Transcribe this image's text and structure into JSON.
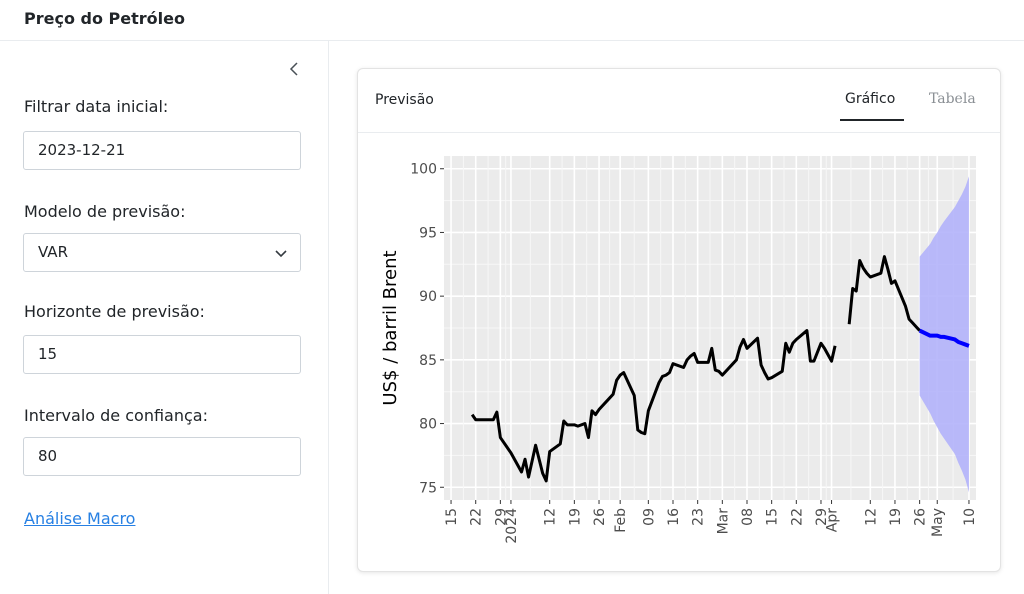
{
  "app": {
    "title": "Preço do Petróleo"
  },
  "sidebar": {
    "collapse_icon": "chevron-left-icon",
    "start_date": {
      "label": "Filtrar data inicial:",
      "value": "2023-12-21"
    },
    "model": {
      "label": "Modelo de previsão:",
      "value": "VAR"
    },
    "horizon": {
      "label": "Horizonte de previsão:",
      "value": "15"
    },
    "confidence": {
      "label": "Intervalo de confiança:",
      "value": "80"
    },
    "macro_link": "Análise Macro"
  },
  "card": {
    "title": "Previsão",
    "tabs": [
      {
        "label": "Gráfico",
        "active": true
      },
      {
        "label": "Tabela",
        "active": false
      }
    ]
  },
  "colors": {
    "history": "#000000",
    "forecast": "#0000ff",
    "band": "#b3b3fb",
    "panel": "#ebebeb",
    "link": "#2780e3"
  },
  "chart_data": {
    "type": "line",
    "ylabel": "US$ / barril Brent",
    "xlabel": "",
    "ylim": [
      74,
      101
    ],
    "xlim": [
      "2023-12-13",
      "2024-05-12"
    ],
    "yticks": [
      75,
      80,
      85,
      90,
      95,
      100
    ],
    "xticks": [
      {
        "date": "2023-12-15",
        "label": "15"
      },
      {
        "date": "2023-12-22",
        "label": "22"
      },
      {
        "date": "2023-12-29",
        "label": "29"
      },
      {
        "date": "2024-01-01",
        "label": "2024"
      },
      {
        "date": "2024-01-12",
        "label": "12"
      },
      {
        "date": "2024-01-19",
        "label": "19"
      },
      {
        "date": "2024-01-26",
        "label": "26"
      },
      {
        "date": "2024-02-01",
        "label": "Feb"
      },
      {
        "date": "2024-02-09",
        "label": "09"
      },
      {
        "date": "2024-02-16",
        "label": "16"
      },
      {
        "date": "2024-02-23",
        "label": "23"
      },
      {
        "date": "2024-03-01",
        "label": "Mar"
      },
      {
        "date": "2024-03-08",
        "label": "08"
      },
      {
        "date": "2024-03-15",
        "label": "15"
      },
      {
        "date": "2024-03-22",
        "label": "22"
      },
      {
        "date": "2024-03-29",
        "label": "29"
      },
      {
        "date": "2024-04-01",
        "label": "Apr"
      },
      {
        "date": "2024-04-12",
        "label": "12"
      },
      {
        "date": "2024-04-19",
        "label": "19"
      },
      {
        "date": "2024-04-26",
        "label": "26"
      },
      {
        "date": "2024-05-01",
        "label": "May"
      },
      {
        "date": "2024-05-10",
        "label": "10"
      }
    ],
    "grid": true,
    "series": [
      {
        "type": "line",
        "segments": [
          [
            [
              "2023-12-21",
              80.7
            ],
            [
              "2023-12-22",
              80.3
            ],
            [
              "2023-12-26",
              80.3
            ],
            [
              "2023-12-27",
              80.3
            ],
            [
              "2023-12-28",
              80.9
            ],
            [
              "2023-12-29",
              78.9
            ],
            [
              "2024-01-01",
              77.7
            ],
            [
              "2024-01-02",
              77.2
            ],
            [
              "2024-01-03",
              76.7
            ],
            [
              "2024-01-04",
              76.2
            ],
            [
              "2024-01-05",
              77.2
            ],
            [
              "2024-01-06",
              75.8
            ],
            [
              "2024-01-08",
              78.3
            ],
            [
              "2024-01-09",
              77.2
            ],
            [
              "2024-01-10",
              76.1
            ],
            [
              "2024-01-11",
              75.5
            ],
            [
              "2024-01-12",
              77.8
            ],
            [
              "2024-01-15",
              78.4
            ],
            [
              "2024-01-16",
              80.2
            ],
            [
              "2024-01-17",
              79.9
            ],
            [
              "2024-01-18",
              79.9
            ],
            [
              "2024-01-19",
              79.9
            ],
            [
              "2024-01-20",
              79.8
            ],
            [
              "2024-01-22",
              80.0
            ],
            [
              "2024-01-23",
              78.9
            ],
            [
              "2024-01-24",
              81.0
            ],
            [
              "2024-01-25",
              80.7
            ],
            [
              "2024-01-26",
              81.1
            ],
            [
              "2024-01-29",
              82.0
            ],
            [
              "2024-01-30",
              82.3
            ],
            [
              "2024-01-31",
              83.4
            ],
            [
              "2024-02-01",
              83.8
            ],
            [
              "2024-02-02",
              84.0
            ],
            [
              "2024-02-05",
              82.2
            ],
            [
              "2024-02-06",
              79.5
            ],
            [
              "2024-02-07",
              79.3
            ],
            [
              "2024-02-08",
              79.2
            ],
            [
              "2024-02-09",
              81.0
            ],
            [
              "2024-02-12",
              83.2
            ],
            [
              "2024-02-13",
              83.7
            ],
            [
              "2024-02-14",
              83.8
            ],
            [
              "2024-02-15",
              84.0
            ],
            [
              "2024-02-16",
              84.7
            ],
            [
              "2024-02-19",
              84.4
            ],
            [
              "2024-02-20",
              85.0
            ],
            [
              "2024-02-21",
              85.3
            ],
            [
              "2024-02-22",
              85.5
            ],
            [
              "2024-02-23",
              84.8
            ],
            [
              "2024-02-26",
              84.8
            ],
            [
              "2024-02-27",
              85.9
            ],
            [
              "2024-02-28",
              84.2
            ],
            [
              "2024-02-29",
              84.1
            ],
            [
              "2024-03-01",
              83.8
            ],
            [
              "2024-03-04",
              84.7
            ],
            [
              "2024-03-05",
              85.0
            ],
            [
              "2024-03-06",
              86.0
            ],
            [
              "2024-03-07",
              86.6
            ],
            [
              "2024-03-08",
              85.9
            ],
            [
              "2024-03-11",
              86.7
            ],
            [
              "2024-03-12",
              84.6
            ],
            [
              "2024-03-13",
              84.0
            ],
            [
              "2024-03-14",
              83.5
            ],
            [
              "2024-03-15",
              83.6
            ],
            [
              "2024-03-18",
              84.1
            ],
            [
              "2024-03-19",
              86.3
            ],
            [
              "2024-03-20",
              85.6
            ],
            [
              "2024-03-21",
              86.3
            ],
            [
              "2024-03-22",
              86.6
            ],
            [
              "2024-03-25",
              87.3
            ],
            [
              "2024-03-26",
              84.9
            ],
            [
              "2024-03-27",
              84.9
            ],
            [
              "2024-03-28",
              85.6
            ],
            [
              "2024-03-29",
              86.3
            ],
            [
              "2024-03-30",
              85.9
            ],
            [
              "2024-04-01",
              84.9
            ],
            [
              "2024-04-02",
              86.1
            ]
          ],
          [
            [
              "2024-04-06",
              87.8
            ],
            [
              "2024-04-07",
              90.6
            ],
            [
              "2024-04-08",
              90.4
            ],
            [
              "2024-04-09",
              92.8
            ],
            [
              "2024-04-10",
              92.2
            ],
            [
              "2024-04-11",
              91.8
            ],
            [
              "2024-04-12",
              91.5
            ],
            [
              "2024-04-15",
              91.8
            ],
            [
              "2024-04-16",
              93.1
            ],
            [
              "2024-04-17",
              92.1
            ],
            [
              "2024-04-18",
              91.0
            ],
            [
              "2024-04-19",
              91.2
            ],
            [
              "2024-04-22",
              89.2
            ],
            [
              "2024-04-23",
              88.2
            ],
            [
              "2024-04-24",
              87.9
            ],
            [
              "2024-04-25",
              87.6
            ],
            [
              "2024-04-26",
              87.3
            ]
          ]
        ]
      },
      {
        "type": "forecast",
        "values": [
          [
            "2024-04-26",
            87.3
          ],
          [
            "2024-04-29",
            86.9
          ],
          [
            "2024-04-30",
            86.9
          ],
          [
            "2024-05-01",
            86.9
          ],
          [
            "2024-05-02",
            86.8
          ],
          [
            "2024-05-03",
            86.8
          ],
          [
            "2024-05-06",
            86.6
          ],
          [
            "2024-05-07",
            86.4
          ],
          [
            "2024-05-08",
            86.3
          ],
          [
            "2024-05-09",
            86.2
          ],
          [
            "2024-05-10",
            86.1
          ]
        ],
        "band": [
          [
            "2024-04-26",
            82.2,
            93.1
          ],
          [
            "2024-04-29",
            80.8,
            94.1
          ],
          [
            "2024-04-30",
            80.2,
            94.6
          ],
          [
            "2024-05-01",
            79.7,
            95.0
          ],
          [
            "2024-05-02",
            79.2,
            95.5
          ],
          [
            "2024-05-03",
            78.8,
            95.9
          ],
          [
            "2024-05-06",
            77.6,
            97.0
          ],
          [
            "2024-05-07",
            76.9,
            97.5
          ],
          [
            "2024-05-08",
            76.3,
            98.0
          ],
          [
            "2024-05-09",
            75.6,
            98.6
          ],
          [
            "2024-05-10",
            74.6,
            99.4
          ]
        ]
      }
    ]
  }
}
